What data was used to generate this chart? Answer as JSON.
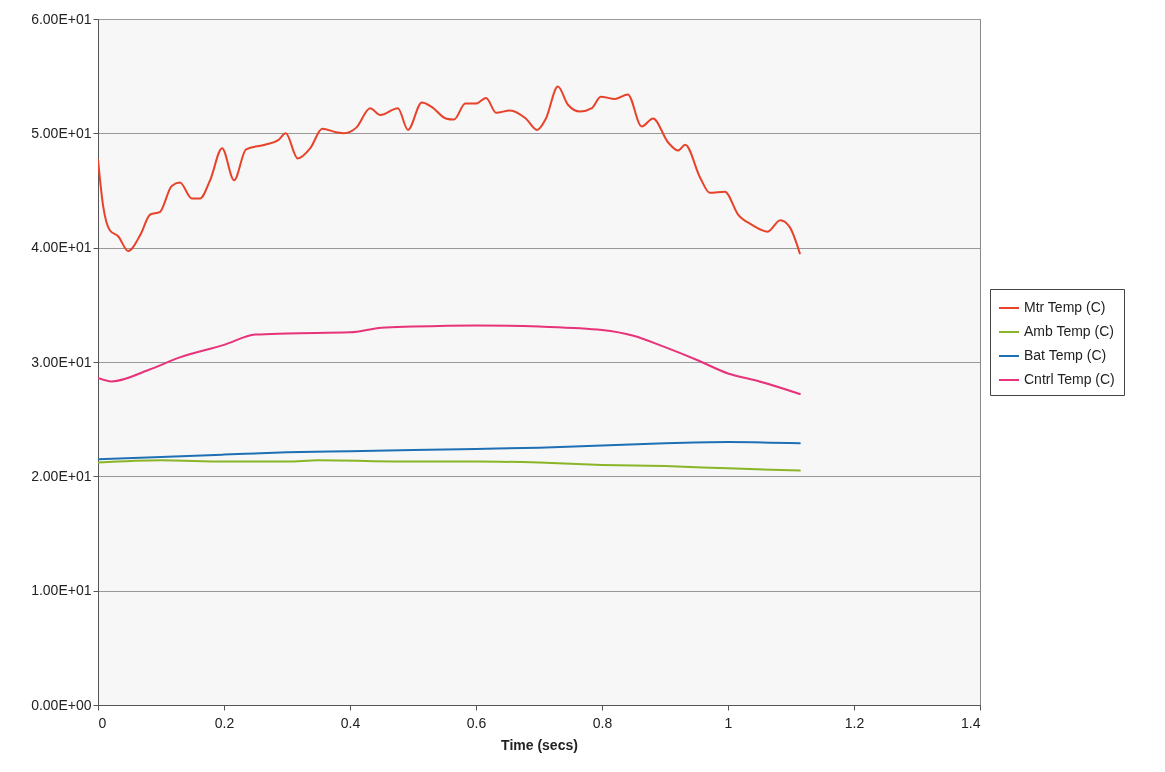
{
  "chart_data": {
    "type": "line",
    "xlabel": "Time (secs)",
    "xlim": [
      0,
      1.4
    ],
    "xticks": [
      0,
      0.2,
      0.4,
      0.6,
      0.8,
      1,
      1.2,
      1.4
    ],
    "ylim": [
      0,
      60
    ],
    "yticks": [
      {
        "value": 0,
        "label": "0.00E+00"
      },
      {
        "value": 10,
        "label": "1.00E+01"
      },
      {
        "value": 20,
        "label": "2.00E+01"
      },
      {
        "value": 30,
        "label": "3.00E+01"
      },
      {
        "value": 40,
        "label": "4.00E+01"
      },
      {
        "value": 50,
        "label": "5.00E+01"
      },
      {
        "value": 60,
        "label": "6.00E+01"
      }
    ],
    "grid": "y",
    "legend": "right",
    "marker": "none",
    "line_style": "solid",
    "series": [
      {
        "name": "Mtr Temp (C)",
        "color": "#e8432a",
        "x": [
          0,
          0.008,
          0.019,
          0.032,
          0.048,
          0.067,
          0.083,
          0.098,
          0.117,
          0.13,
          0.149,
          0.162,
          0.178,
          0.197,
          0.216,
          0.235,
          0.265,
          0.286,
          0.298,
          0.317,
          0.337,
          0.356,
          0.378,
          0.39,
          0.41,
          0.432,
          0.448,
          0.476,
          0.492,
          0.514,
          0.53,
          0.552,
          0.565,
          0.583,
          0.6,
          0.616,
          0.632,
          0.654,
          0.679,
          0.697,
          0.711,
          0.73,
          0.746,
          0.765,
          0.784,
          0.798,
          0.821,
          0.841,
          0.863,
          0.881,
          0.905,
          0.921,
          0.932,
          0.956,
          0.971,
          0.995,
          1.016,
          1.038,
          1.063,
          1.083,
          1.098,
          1.114
        ],
        "values": [
          47.7,
          43.7,
          41.5,
          41.0,
          39.7,
          41.1,
          42.9,
          43.1,
          45.4,
          45.7,
          44.3,
          44.3,
          45.9,
          48.7,
          45.9,
          48.6,
          49.0,
          49.4,
          50.0,
          47.8,
          48.7,
          50.4,
          50.1,
          50.0,
          50.5,
          52.2,
          51.6,
          52.2,
          50.3,
          52.7,
          52.3,
          51.3,
          51.2,
          52.6,
          52.6,
          53.1,
          51.8,
          52.0,
          51.3,
          50.3,
          51.3,
          54.1,
          52.5,
          51.9,
          52.2,
          53.2,
          53.0,
          53.4,
          50.6,
          51.3,
          49.2,
          48.5,
          49.0,
          46.1,
          44.8,
          44.9,
          42.9,
          42.0,
          41.4,
          42.4,
          41.8,
          39.5
        ]
      },
      {
        "name": "Amb Temp (C)",
        "color": "#8ab526",
        "x": [
          0,
          0.1,
          0.2,
          0.3,
          0.35,
          0.5,
          0.6,
          0.7,
          0.8,
          0.9,
          1.0,
          1.114
        ],
        "values": [
          21.2,
          21.4,
          21.3,
          21.3,
          21.4,
          21.3,
          21.3,
          21.2,
          21.0,
          20.9,
          20.7,
          20.5
        ]
      },
      {
        "name": "Bat Temp (C)",
        "color": "#1f6fb5",
        "x": [
          0,
          0.1,
          0.2,
          0.3,
          0.4,
          0.5,
          0.6,
          0.7,
          0.8,
          0.9,
          1.0,
          1.114
        ],
        "values": [
          21.5,
          21.7,
          21.9,
          22.1,
          22.2,
          22.3,
          22.4,
          22.5,
          22.7,
          22.9,
          23.0,
          22.9
        ]
      },
      {
        "name": "Cntrl Temp (C)",
        "color": "#e8327a",
        "x": [
          0,
          0.022,
          0.08,
          0.13,
          0.2,
          0.25,
          0.3,
          0.4,
          0.45,
          0.5,
          0.6,
          0.7,
          0.8,
          0.85,
          0.9,
          0.95,
          1.0,
          1.05,
          1.114
        ],
        "values": [
          28.6,
          28.3,
          29.3,
          30.4,
          31.5,
          32.4,
          32.5,
          32.6,
          33.0,
          33.1,
          33.2,
          33.1,
          32.8,
          32.3,
          31.3,
          30.2,
          29.0,
          28.3,
          27.2
        ]
      }
    ]
  }
}
